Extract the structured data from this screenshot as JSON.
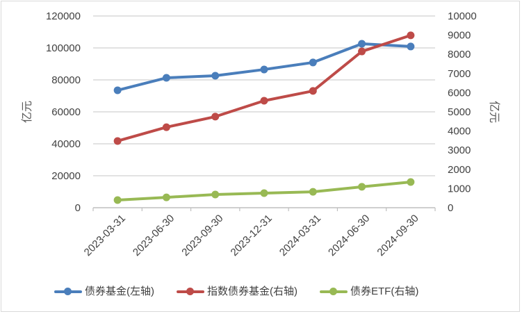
{
  "chart_data": {
    "type": "line",
    "title": "",
    "categories": [
      "2023-03-31",
      "2023-06-30",
      "2023-09-30",
      "2023-12-31",
      "2024-03-31",
      "2024-06-30",
      "2024-09-30"
    ],
    "series": [
      {
        "name": "债券基金(左轴)",
        "axis": "left",
        "color": "#4a7ebb",
        "values": [
          73500,
          81300,
          82600,
          86500,
          90900,
          102600,
          100900
        ]
      },
      {
        "name": "指数债券基金(右轴)",
        "axis": "right",
        "color": "#be4b48",
        "values": [
          3480,
          4200,
          4750,
          5580,
          6090,
          8150,
          8990
        ]
      },
      {
        "name": "债券ETF(右轴)",
        "axis": "right",
        "color": "#98b954",
        "values": [
          400,
          540,
          690,
          760,
          830,
          1090,
          1340
        ]
      }
    ],
    "ylabel": "亿元",
    "y2label": "亿元",
    "ylim": [
      0,
      120000
    ],
    "y2lim": [
      0,
      10000
    ],
    "yticks": [
      "0",
      "20000",
      "40000",
      "60000",
      "80000",
      "100000",
      "120000"
    ],
    "y2ticks": [
      "0",
      "1000",
      "2000",
      "3000",
      "4000",
      "5000",
      "6000",
      "7000",
      "8000",
      "9000",
      "10000"
    ],
    "grid": true,
    "legend_position": "bottom"
  },
  "legend": [
    {
      "label": "债券基金(左轴)",
      "color": "#4a7ebb"
    },
    {
      "label": "指数债券基金(右轴)",
      "color": "#be4b48"
    },
    {
      "label": "债券ETF(右轴)",
      "color": "#98b954"
    }
  ]
}
